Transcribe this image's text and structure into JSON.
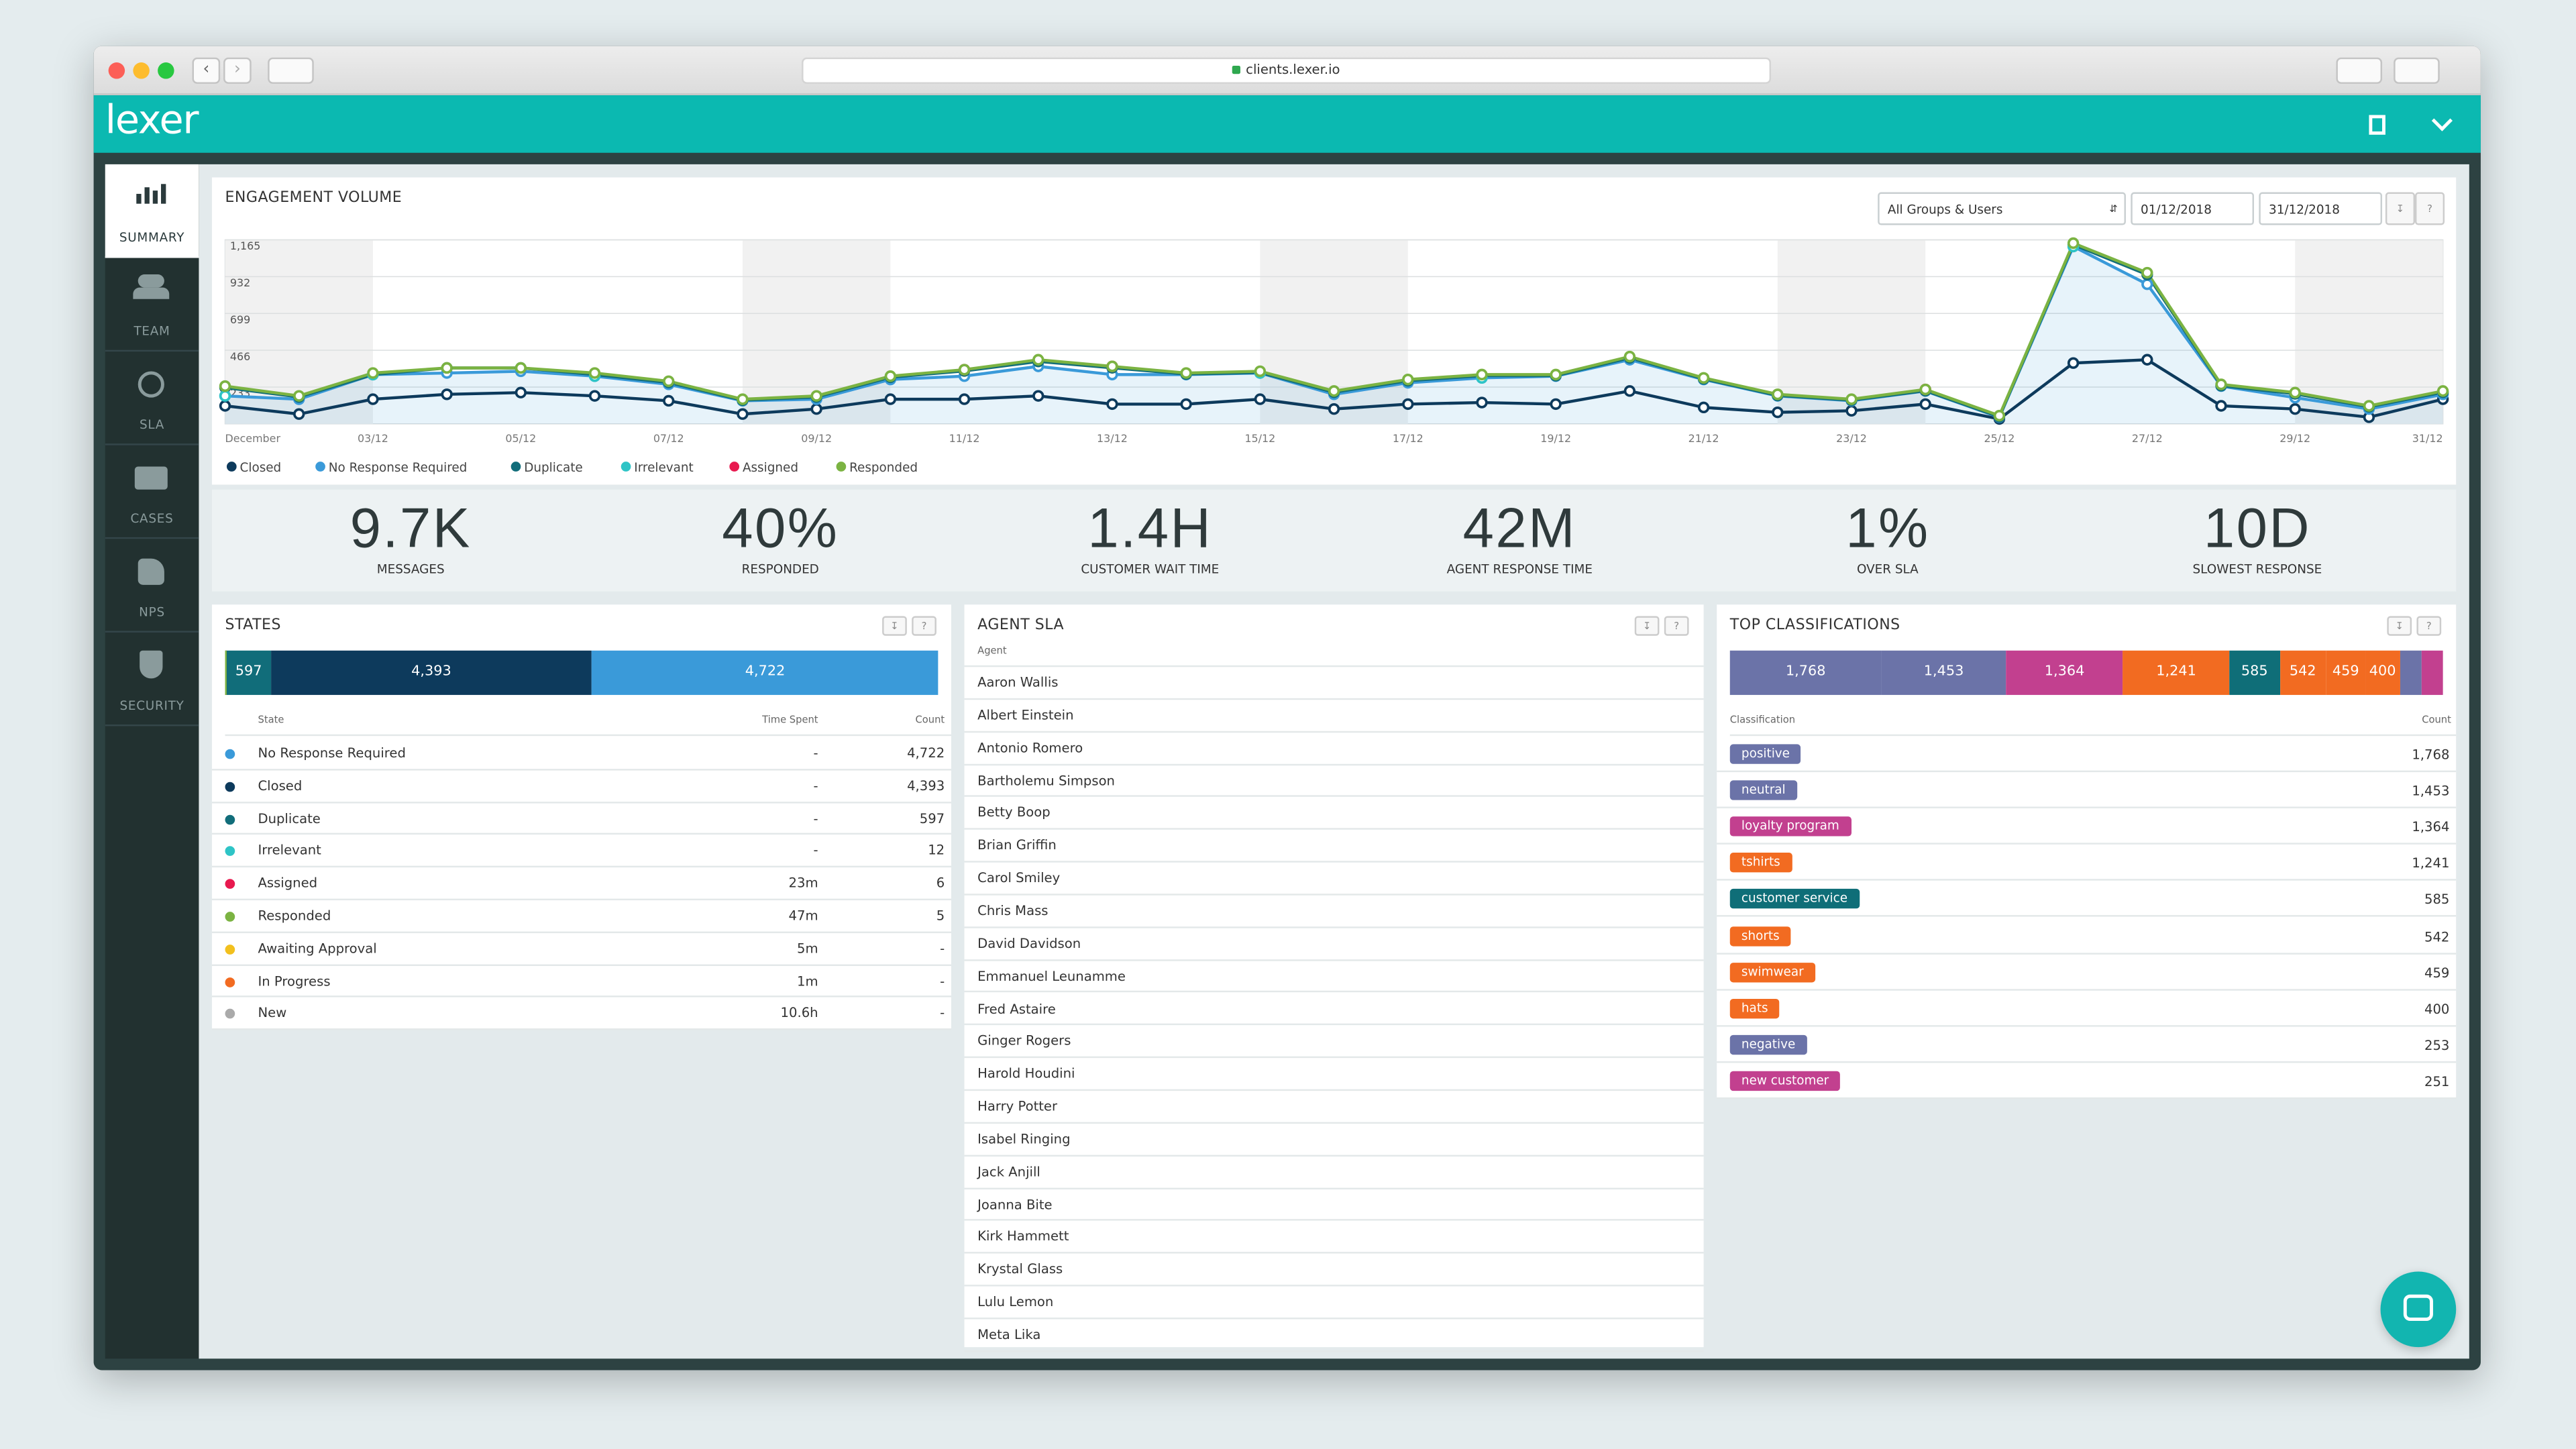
{
  "browser": {
    "url": "clients.lexer.io"
  },
  "app": {
    "logo": "lexer"
  },
  "sidebar": [
    "SUMMARY",
    "TEAM",
    "SLA",
    "CASES",
    "NPS",
    "SECURITY"
  ],
  "filters": {
    "group": "All Groups & Users",
    "start": "01/12/2018",
    "end": "31/12/2018",
    "help": "?"
  },
  "chart_data": {
    "type": "line",
    "title": "ENGAGEMENT VOLUME",
    "categories": [
      "December",
      null,
      "03/12",
      null,
      "05/12",
      null,
      "07/12",
      null,
      "09/12",
      null,
      "11/12",
      null,
      "13/12",
      null,
      "15/12",
      null,
      "17/12",
      null,
      "19/12",
      null,
      "21/12",
      null,
      "23/12",
      null,
      "25/12",
      null,
      "27/12",
      null,
      "29/12",
      null,
      "31/12"
    ],
    "ylim": [
      0,
      1165
    ],
    "yticks": [
      233,
      466,
      699,
      932,
      {
        "value": 1165,
        "label": "1,165"
      }
    ],
    "grid": true,
    "series": [
      {
        "name": "Closed",
        "color": "#0d3a5c",
        "values": [
          114,
          62,
          156,
          187,
          198,
          177,
          146,
          62,
          94,
          156,
          156,
          177,
          125,
          125,
          156,
          94,
          125,
          135,
          125,
          208,
          104,
          73,
          83,
          125,
          31,
          385,
          406,
          114,
          94,
          42,
          156
        ]
      },
      {
        "name": "No Response Required",
        "color": "#3a9ad9",
        "values": [
          177,
          156,
          312,
          322,
          333,
          302,
          250,
          146,
          156,
          281,
          302,
          364,
          312,
          312,
          322,
          187,
          260,
          291,
          302,
          406,
          281,
          177,
          146,
          208,
          42,
          1123,
          884,
          239,
          166,
          94,
          187
        ]
      },
      {
        "name": "Duplicate",
        "color": "#116d7a",
        "values": [
          230,
          170,
          312,
          354,
          354,
          312,
          262,
          150,
          170,
          295,
          335,
          395,
          355,
          315,
          325,
          200,
          273,
          305,
          305,
          418,
          285,
          180,
          150,
          210,
          45,
          1135,
          945,
          242,
          190,
          108,
          200
        ]
      },
      {
        "name": "Irrelevant",
        "color": "#2ec4c6",
        "values": [
          177,
          null,
          312,
          null,
          null,
          302,
          null,
          null,
          null,
          null,
          null,
          null,
          null,
          null,
          322,
          null,
          null,
          291,
          null,
          null,
          null,
          null,
          null,
          null,
          null,
          1123,
          null,
          null,
          null,
          null,
          null
        ]
      },
      {
        "name": "Assigned",
        "color": "#e8194f",
        "values": [
          null,
          null,
          null,
          null,
          null,
          null,
          null,
          null,
          null,
          null,
          343,
          null,
          364,
          null,
          null,
          null,
          null,
          null,
          null,
          null,
          null,
          null,
          null,
          218,
          null,
          null,
          null,
          null,
          null,
          null,
          null
        ]
      },
      {
        "name": "Responded",
        "color": "#7bb342",
        "values": [
          239,
          177,
          322,
          354,
          354,
          322,
          270,
          156,
          177,
          302,
          343,
          406,
          364,
          322,
          333,
          208,
          281,
          312,
          312,
          426,
          291,
          187,
          156,
          218,
          52,
          1144,
          957,
          250,
          198,
          114,
          208
        ]
      }
    ]
  },
  "kpis": [
    {
      "value": "9.7K",
      "label": "MESSAGES"
    },
    {
      "value": "40%",
      "label": "RESPONDED"
    },
    {
      "value": "1.4H",
      "label": "CUSTOMER WAIT TIME"
    },
    {
      "value": "42M",
      "label": "AGENT RESPONSE TIME"
    },
    {
      "value": "1%",
      "label": "OVER SLA"
    },
    {
      "value": "10D",
      "label": "SLOWEST RESPONSE"
    }
  ],
  "states": {
    "title": "STATES",
    "columns": [
      "State",
      "Time Spent",
      "Count"
    ],
    "rows": [
      {
        "name": "No Response Required",
        "color": "#3a9ad9",
        "time": "-",
        "count": {
          "value": 4722,
          "label": "4,722"
        }
      },
      {
        "name": "Closed",
        "color": "#0d3a5c",
        "time": "-",
        "count": {
          "value": 4393,
          "label": "4,393"
        }
      },
      {
        "name": "Duplicate",
        "color": "#116d7a",
        "time": "-",
        "count": 597
      },
      {
        "name": "Irrelevant",
        "color": "#2ec4c6",
        "time": "-",
        "count": 12
      },
      {
        "name": "Assigned",
        "color": "#e8194f",
        "time": "23m",
        "count": 6
      },
      {
        "name": "Responded",
        "color": "#7bb342",
        "time": "47m",
        "count": 5
      },
      {
        "name": "Awaiting Approval",
        "color": "#f2c01e",
        "time": "5m",
        "count": "-"
      },
      {
        "name": "In Progress",
        "color": "#f26b21",
        "time": "1m",
        "count": "-"
      },
      {
        "name": "New",
        "color": "#aaaaaa",
        "time": "10.6h",
        "count": "-"
      }
    ]
  },
  "agent_sla": {
    "title": "AGENT SLA",
    "column": "Agent",
    "agents": [
      "Aaron Wallis",
      "Albert Einstein",
      "Antonio Romero",
      "Bartholemu Simpson",
      "Betty Boop",
      "Brian Griffin",
      "Carol Smiley",
      "Chris Mass",
      "David Davidson",
      "Emmanuel Leunamme",
      "Fred Astaire",
      "Ginger Rogers",
      "Harold Houdini",
      "Harry Potter",
      "Isabel Ringing",
      "Jack Anjill",
      "Joanna Bite",
      "Kirk Hammett",
      "Krystal Glass",
      "Lulu Lemon",
      "Meta Lika"
    ]
  },
  "top_classifications": {
    "title": "TOP CLASSIFICATIONS",
    "columns": [
      "Classification",
      "Count"
    ],
    "rows": [
      {
        "name": "positive",
        "color": "#6b73a8",
        "count": {
          "value": 1768,
          "label": "1,768"
        }
      },
      {
        "name": "neutral",
        "color": "#6b73a8",
        "count": {
          "value": 1453,
          "label": "1,453"
        }
      },
      {
        "name": "loyalty program",
        "color": "#c2408f",
        "count": {
          "value": 1364,
          "label": "1,364"
        }
      },
      {
        "name": "tshirts",
        "color": "#f26b21",
        "count": {
          "value": 1241,
          "label": "1,241"
        }
      },
      {
        "name": "customer service",
        "color": "#0f6e78",
        "count": 585
      },
      {
        "name": "shorts",
        "color": "#f26b21",
        "count": 542
      },
      {
        "name": "swimwear",
        "color": "#f26b21",
        "count": 459
      },
      {
        "name": "hats",
        "color": "#f26b21",
        "count": 400
      },
      {
        "name": "negative",
        "color": "#6b73a8",
        "count": 253
      },
      {
        "name": "new customer",
        "color": "#c2408f",
        "count": 251
      }
    ]
  }
}
